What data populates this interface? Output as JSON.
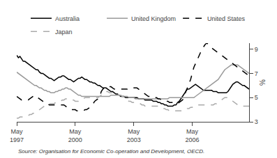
{
  "chart_data": {
    "type": "line",
    "ylabel": "%",
    "annotations": [
      "Source: Organisation for Economic Co-operation and Development, OECD."
    ],
    "categories": [
      "May\n1997",
      null,
      null,
      null,
      null,
      null,
      null,
      null,
      null,
      null,
      null,
      null,
      null,
      null,
      null,
      null,
      null,
      null,
      null,
      null,
      null,
      null,
      null,
      null,
      null,
      null,
      null,
      null,
      null,
      null,
      null,
      null,
      null,
      null,
      null,
      null,
      "May\n2000",
      null,
      null,
      null,
      null,
      null,
      null,
      null,
      null,
      null,
      null,
      null,
      null,
      null,
      null,
      null,
      null,
      null,
      null,
      null,
      null,
      null,
      null,
      null,
      null,
      null,
      null,
      null,
      null,
      null,
      null,
      null,
      null,
      null,
      null,
      null,
      "May\n2003",
      null,
      null,
      null,
      null,
      null,
      null,
      null,
      null,
      null,
      null,
      null,
      null,
      null,
      null,
      null,
      null,
      null,
      null,
      null,
      null,
      null,
      null,
      null,
      null,
      null,
      null,
      null,
      null,
      null,
      null,
      null,
      null,
      null,
      null,
      null,
      "May\n2006",
      null,
      null,
      null,
      null,
      null,
      null,
      null,
      null,
      null,
      null,
      null,
      null,
      null,
      null,
      null,
      null,
      null,
      null,
      null,
      null,
      null,
      null,
      null,
      null,
      null,
      null,
      null,
      null,
      null,
      null,
      null,
      null,
      null,
      null,
      null
    ],
    "ylim": [
      3,
      9.5
    ],
    "yticks": [
      3,
      5,
      7,
      9
    ],
    "grid": false,
    "legend": "upper right",
    "series": [
      {
        "name": "Australia",
        "color": "#000000",
        "line_style": "solid",
        "values": [
          8.5,
          8.3,
          8.4,
          8.2,
          8.0,
          8.0,
          7.9,
          7.8,
          7.7,
          7.6,
          7.5,
          7.4,
          7.3,
          7.3,
          7.1,
          7.0,
          7.0,
          6.9,
          6.8,
          6.7,
          6.6,
          6.6,
          6.5,
          6.4,
          6.5,
          6.6,
          6.7,
          6.7,
          6.8,
          6.8,
          6.7,
          6.6,
          6.5,
          6.5,
          6.4,
          6.3,
          6.4,
          6.5,
          6.6,
          6.6,
          6.7,
          6.6,
          6.5,
          6.5,
          6.4,
          6.3,
          6.3,
          6.2,
          6.2,
          6.1,
          6.0,
          6.0,
          5.9,
          5.8,
          5.8,
          5.8,
          5.7,
          5.6,
          5.5,
          5.5,
          5.4,
          5.3,
          5.3,
          5.2,
          5.1,
          5.1,
          5.1,
          5.0,
          5.0,
          5.0,
          5.0,
          5.0,
          5.0,
          5.0,
          5.0,
          4.9,
          4.9,
          4.9,
          4.9,
          4.8,
          4.8,
          4.8,
          4.8,
          4.8,
          4.7,
          4.7,
          4.7,
          4.6,
          4.6,
          4.5,
          4.5,
          4.4,
          4.4,
          4.3,
          4.3,
          4.3,
          4.3,
          4.4,
          4.4,
          4.6,
          4.7,
          4.9,
          5.1,
          5.3,
          5.5,
          5.7,
          5.7,
          5.8,
          5.9,
          6.0,
          6.1,
          6.0,
          5.9,
          5.8,
          5.7,
          5.6,
          5.6,
          5.6,
          5.6,
          5.6,
          5.6,
          5.5,
          5.5,
          5.5,
          5.4,
          5.4,
          5.4,
          5.4,
          5.4,
          5.4,
          5.5,
          5.7,
          5.9,
          6.1,
          6.2,
          6.3,
          6.3,
          6.2,
          6.1,
          6.0,
          6.0,
          5.9,
          5.8,
          5.7
        ]
      },
      {
        "name": "United Kingdom",
        "color": "#999999",
        "line_style": "solid",
        "values": [
          7.1,
          7.0,
          6.9,
          6.8,
          6.7,
          6.6,
          6.5,
          6.4,
          6.3,
          6.2,
          6.1,
          6.0,
          6.0,
          5.9,
          5.8,
          5.8,
          5.7,
          5.6,
          5.6,
          5.5,
          5.5,
          5.4,
          5.4,
          5.4,
          5.5,
          5.5,
          5.6,
          5.6,
          5.7,
          5.7,
          5.8,
          5.8,
          5.7,
          5.7,
          5.6,
          5.5,
          5.4,
          5.3,
          5.2,
          5.2,
          5.1,
          5.1,
          5.1,
          5.1,
          5.1,
          5.1,
          5.1,
          5.1,
          5.1,
          5.1,
          5.1,
          5.1,
          5.1,
          5.1,
          5.1,
          5.1,
          5.1,
          5.1,
          5.2,
          5.2,
          5.2,
          5.2,
          5.2,
          5.2,
          5.2,
          5.1,
          5.1,
          5.1,
          5.1,
          5.0,
          5.0,
          5.0,
          5.0,
          4.9,
          4.9,
          4.9,
          4.9,
          4.9,
          4.9,
          4.9,
          4.9,
          4.9,
          4.9,
          4.9,
          4.9,
          4.9,
          4.9,
          4.9,
          4.9,
          4.9,
          4.9,
          4.9,
          4.9,
          4.9,
          5.0,
          5.0,
          5.0,
          5.0,
          5.0,
          5.0,
          5.0,
          5.0,
          5.0,
          5.0,
          5.0,
          5.0,
          5.0,
          5.0,
          5.0,
          5.0,
          5.1,
          5.2,
          5.3,
          5.4,
          5.5,
          5.6,
          5.7,
          5.8,
          5.9,
          6.0,
          6.1,
          6.2,
          6.3,
          6.4,
          6.5,
          6.7,
          6.9,
          7.1,
          7.3,
          7.4,
          7.5,
          7.6,
          7.7,
          7.7,
          7.7,
          7.7,
          7.7,
          7.6,
          7.5,
          7.4,
          7.3,
          7.2,
          7.1,
          7.0
        ]
      },
      {
        "name": "United States",
        "color": "#000000",
        "line_style": "dashed",
        "values": [
          5.1,
          5.0,
          4.9,
          4.8,
          4.8,
          4.8,
          4.8,
          4.8,
          4.9,
          5.0,
          5.1,
          5.2,
          5.1,
          5.0,
          4.9,
          4.8,
          4.7,
          4.6,
          4.5,
          4.5,
          4.4,
          4.4,
          4.4,
          4.4,
          4.4,
          4.4,
          4.4,
          4.4,
          4.4,
          4.4,
          4.3,
          4.2,
          4.1,
          4.0,
          4.0,
          4.0,
          4.0,
          3.9,
          3.9,
          3.9,
          3.9,
          3.9,
          4.0,
          4.0,
          4.1,
          4.2,
          4.3,
          4.5,
          4.7,
          4.8,
          4.9,
          5.0,
          5.5,
          5.7,
          5.8,
          5.9,
          5.9,
          5.9,
          5.9,
          5.8,
          5.7,
          5.7,
          5.7,
          5.7,
          5.7,
          5.7,
          5.7,
          5.7,
          5.7,
          5.8,
          5.8,
          5.8,
          5.8,
          5.8,
          5.8,
          5.7,
          5.6,
          5.5,
          5.4,
          5.3,
          5.2,
          5.1,
          5.1,
          5.0,
          5.0,
          5.0,
          5.0,
          4.9,
          4.9,
          4.8,
          4.8,
          4.7,
          4.7,
          4.7,
          4.6,
          4.6,
          4.6,
          4.5,
          4.5,
          4.5,
          4.6,
          4.7,
          4.8,
          5.0,
          5.5,
          5.8,
          6.1,
          6.5,
          7.0,
          7.5,
          7.8,
          8.1,
          8.5,
          8.8,
          9.0,
          9.2,
          9.4,
          9.5,
          9.4,
          9.3,
          9.1,
          9.0,
          8.9,
          8.8,
          8.7,
          8.6,
          8.5,
          8.4,
          8.3,
          8.2,
          8.1,
          8.0,
          7.9,
          7.8,
          7.7,
          7.6,
          7.5,
          7.4,
          7.3,
          7.2,
          7.1,
          7.0,
          6.9,
          6.8
        ]
      },
      {
        "name": "Japan",
        "color": "#aaaaaa",
        "line_style": "dashed",
        "values": [
          3.3,
          3.3,
          3.4,
          3.4,
          3.4,
          3.5,
          3.5,
          3.5,
          3.6,
          3.6,
          3.7,
          3.7,
          3.8,
          3.9,
          4.0,
          4.1,
          4.2,
          4.3,
          4.4,
          4.4,
          4.5,
          4.5,
          4.5,
          4.5,
          4.6,
          4.6,
          4.7,
          4.7,
          4.8,
          4.8,
          4.9,
          4.9,
          4.9,
          4.9,
          4.8,
          4.8,
          4.7,
          4.7,
          4.7,
          4.8,
          4.9,
          4.9,
          5.0,
          5.0,
          5.0,
          5.0,
          5.0,
          5.0,
          5.0,
          5.0,
          5.0,
          5.1,
          5.2,
          5.4,
          5.5,
          5.5,
          5.5,
          5.4,
          5.4,
          5.4,
          5.3,
          5.3,
          5.3,
          5.2,
          5.2,
          5.1,
          5.0,
          4.9,
          4.8,
          4.7,
          4.7,
          4.6,
          4.6,
          4.6,
          4.6,
          4.6,
          4.5,
          4.4,
          4.4,
          4.3,
          4.3,
          4.3,
          4.3,
          4.3,
          4.3,
          4.3,
          4.3,
          4.3,
          4.2,
          4.2,
          4.1,
          4.1,
          4.0,
          4.0,
          3.9,
          3.9,
          3.9,
          3.9,
          3.9,
          3.9,
          3.9,
          3.9,
          3.9,
          3.9,
          4.0,
          4.1,
          4.1,
          4.2,
          4.2,
          4.3,
          4.4,
          4.4,
          4.4,
          4.4,
          4.4,
          4.4,
          4.4,
          4.4,
          4.4,
          4.4,
          4.4,
          4.4,
          4.5,
          4.5,
          4.6,
          4.7,
          4.8,
          4.9,
          5.0,
          5.0,
          5.0,
          4.9,
          4.8,
          4.7,
          4.6,
          4.5,
          4.4,
          4.4,
          4.3,
          4.3,
          4.3,
          4.3,
          4.3,
          4.3
        ]
      }
    ]
  }
}
